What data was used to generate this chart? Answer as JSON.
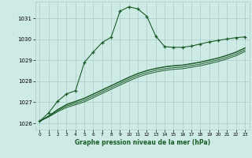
{
  "bg_color": "#ceeae4",
  "grid_color": "#aacccc",
  "line_color": "#1a5c28",
  "title": "Graphe pression niveau de la mer (hPa)",
  "xlabel_ticks": [
    0,
    1,
    2,
    3,
    4,
    5,
    6,
    7,
    8,
    9,
    10,
    11,
    12,
    13,
    14,
    15,
    16,
    17,
    18,
    19,
    20,
    21,
    22,
    23
  ],
  "ylim": [
    1025.7,
    1031.8
  ],
  "yticks": [
    1026,
    1027,
    1028,
    1029,
    1030,
    1031
  ],
  "main_y": [
    1026.1,
    1026.5,
    1027.05,
    1027.4,
    1027.55,
    1028.9,
    1029.4,
    1029.85,
    1030.1,
    1031.35,
    1031.55,
    1031.45,
    1031.1,
    1030.15,
    1029.65,
    1029.62,
    1029.62,
    1029.68,
    1029.78,
    1029.88,
    1029.95,
    1030.02,
    1030.08,
    1030.12
  ],
  "bg_lines": [
    [
      1026.1,
      1026.35,
      1026.65,
      1026.9,
      1027.05,
      1027.2,
      1027.4,
      1027.6,
      1027.8,
      1028.0,
      1028.2,
      1028.38,
      1028.52,
      1028.62,
      1028.7,
      1028.75,
      1028.78,
      1028.85,
      1028.92,
      1029.02,
      1029.12,
      1029.25,
      1029.4,
      1029.6
    ],
    [
      1026.1,
      1026.35,
      1026.65,
      1026.88,
      1027.02,
      1027.18,
      1027.38,
      1027.58,
      1027.78,
      1027.98,
      1028.18,
      1028.36,
      1028.5,
      1028.6,
      1028.68,
      1028.73,
      1028.76,
      1028.83,
      1028.9,
      1029.0,
      1029.1,
      1029.23,
      1029.38,
      1029.58
    ],
    [
      1026.1,
      1026.32,
      1026.6,
      1026.82,
      1026.95,
      1027.1,
      1027.3,
      1027.5,
      1027.7,
      1027.9,
      1028.1,
      1028.28,
      1028.42,
      1028.52,
      1028.6,
      1028.65,
      1028.68,
      1028.75,
      1028.82,
      1028.92,
      1029.02,
      1029.15,
      1029.3,
      1029.5
    ],
    [
      1026.1,
      1026.3,
      1026.55,
      1026.75,
      1026.88,
      1027.02,
      1027.22,
      1027.42,
      1027.62,
      1027.82,
      1028.02,
      1028.2,
      1028.34,
      1028.44,
      1028.52,
      1028.57,
      1028.6,
      1028.67,
      1028.74,
      1028.84,
      1028.94,
      1029.07,
      1029.22,
      1029.42
    ]
  ]
}
